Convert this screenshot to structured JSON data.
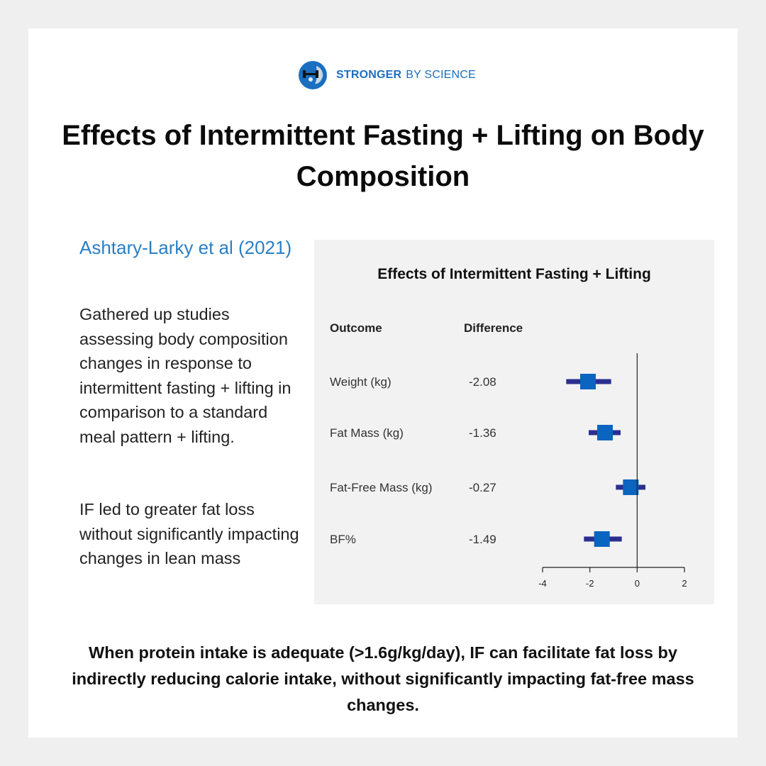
{
  "brand": {
    "name_strong": "STRONGER",
    "name_rest": "BY SCIENCE"
  },
  "title": "Effects of Intermittent Fasting + Lifting on Body Composition",
  "study": "Ashtary-Larky et al (2021)",
  "paragraphs": [
    "Gathered up studies assessing body composition changes in response to intermittent fasting + lifting in comparison to a standard meal pattern + lifting.",
    "IF led to greater fat loss without significantly impacting changes in lean mass"
  ],
  "conclusion": "When protein intake is adequate (>1.6g/kg/day), IF can facilitate fat loss by indirectly reducing calorie intake, without significantly impacting fat-free mass changes.",
  "chart_data": {
    "type": "forest",
    "title": "Effects of Intermittent Fasting + Lifting",
    "columns": {
      "outcome": "Outcome",
      "difference": "Difference"
    },
    "rows": [
      {
        "label": "Weight (kg)",
        "value_text": "-2.08",
        "value": -2.08,
        "ci": [
          -3.0,
          -1.1
        ]
      },
      {
        "label": "Fat Mass (kg)",
        "value_text": "-1.36",
        "value": -1.36,
        "ci": [
          -2.05,
          -0.7
        ]
      },
      {
        "label": "Fat-Free Mass (kg)",
        "value_text": "-0.27",
        "value": -0.27,
        "ci": [
          -0.9,
          0.35
        ]
      },
      {
        "label": "BF%",
        "value_text": "-1.49",
        "value": -1.49,
        "ci": [
          -2.25,
          -0.65
        ]
      }
    ],
    "xlim": [
      -4,
      2
    ],
    "xticks": [
      -4,
      -2,
      0,
      2
    ],
    "colors": {
      "marker": "#0a64c0",
      "ci": "#2a2f8f",
      "axis": "#222222"
    }
  }
}
